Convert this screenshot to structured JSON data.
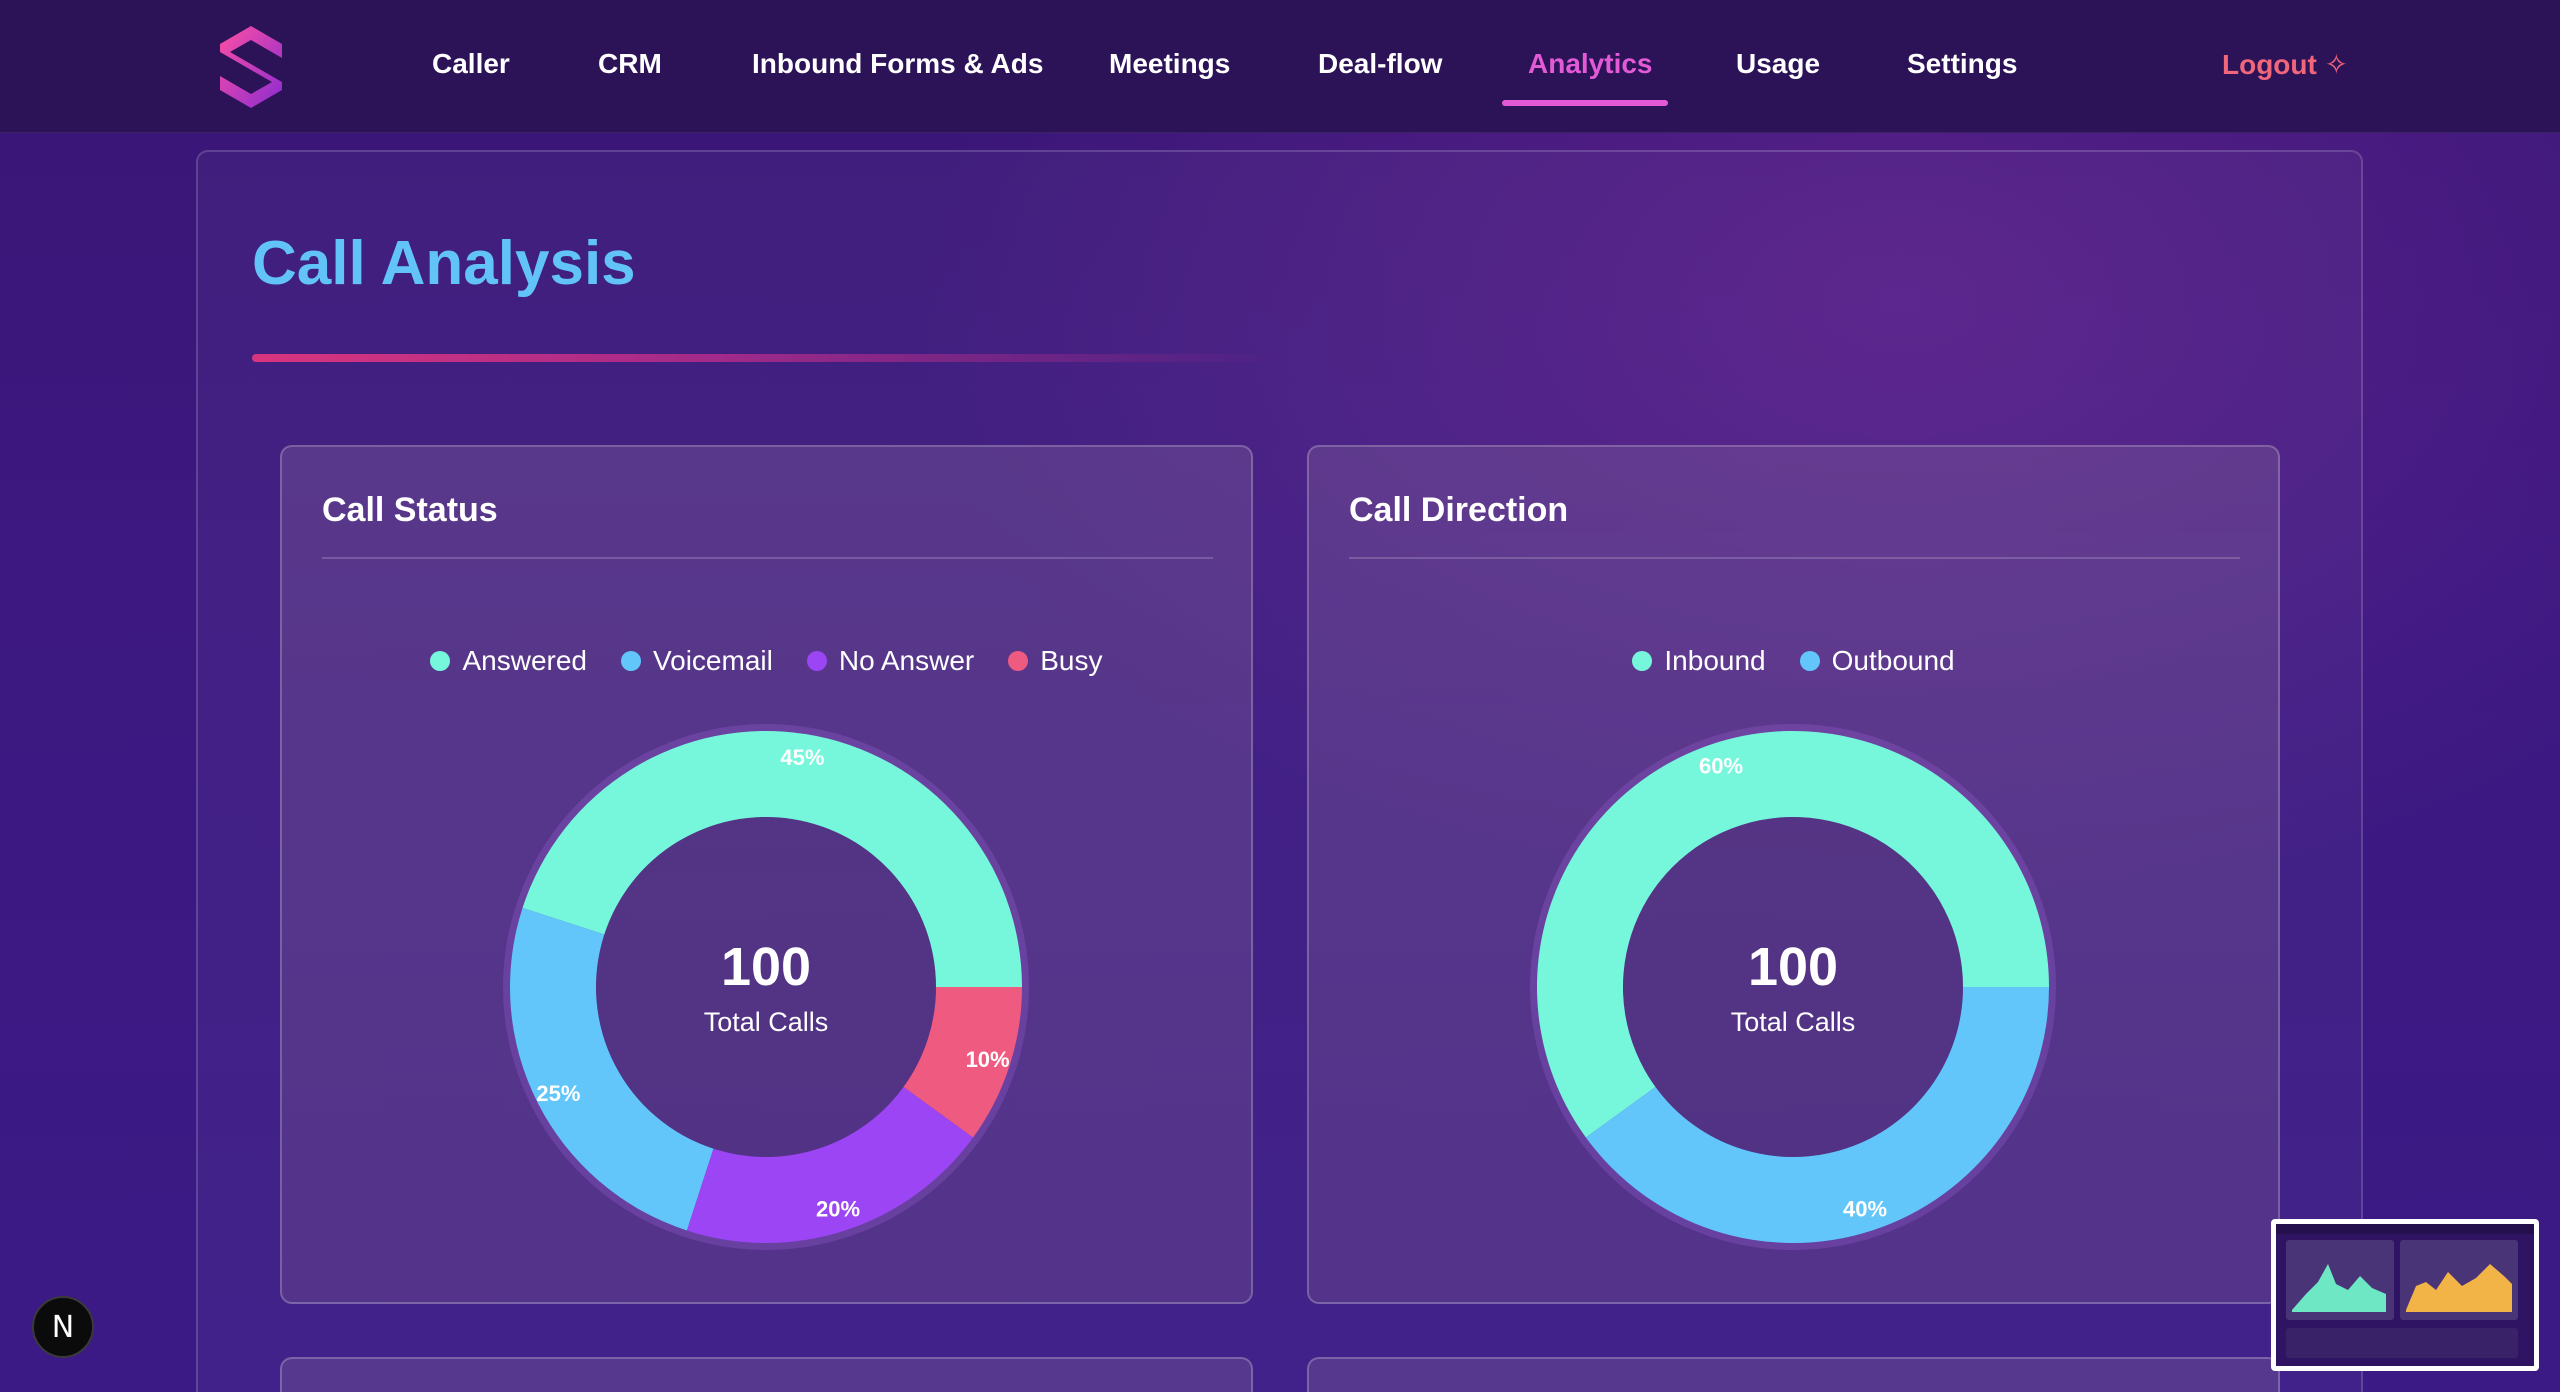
{
  "nav": {
    "items": [
      {
        "label": "Caller"
      },
      {
        "label": "CRM"
      },
      {
        "label": "Inbound Forms & Ads"
      },
      {
        "label": "Meetings"
      },
      {
        "label": "Deal-flow"
      },
      {
        "label": "Analytics",
        "active": true
      },
      {
        "label": "Usage"
      },
      {
        "label": "Settings"
      }
    ],
    "logout_label": "Logout ✧",
    "logo_icon": "s-logo-icon"
  },
  "page": {
    "title": "Call Analysis"
  },
  "colors": {
    "answered": "#76f7dc",
    "voicemail": "#62c6fb",
    "no_answer": "#9b45f4",
    "busy": "#ee5a80",
    "inbound": "#76f7dc",
    "outbound": "#62c6fb",
    "accent": "#e35ad6",
    "title": "#62c3f8"
  },
  "chart_data": [
    {
      "type": "pie",
      "title": "Call Status",
      "legend_placement": "top-center",
      "categories": [
        "Answered",
        "Voicemail",
        "No Answer",
        "Busy"
      ],
      "values": [
        45,
        25,
        20,
        10
      ],
      "value_labels": [
        "45%",
        "25%",
        "20%",
        "10%"
      ],
      "center_value": "100",
      "center_label": "Total Calls"
    },
    {
      "type": "pie",
      "title": "Call Direction",
      "legend_placement": "top-center",
      "categories": [
        "Inbound",
        "Outbound"
      ],
      "values": [
        60,
        40
      ],
      "value_labels": [
        "60%",
        "40%"
      ],
      "center_value": "100",
      "center_label": "Total Calls"
    }
  ],
  "badge": {
    "label": "N"
  }
}
